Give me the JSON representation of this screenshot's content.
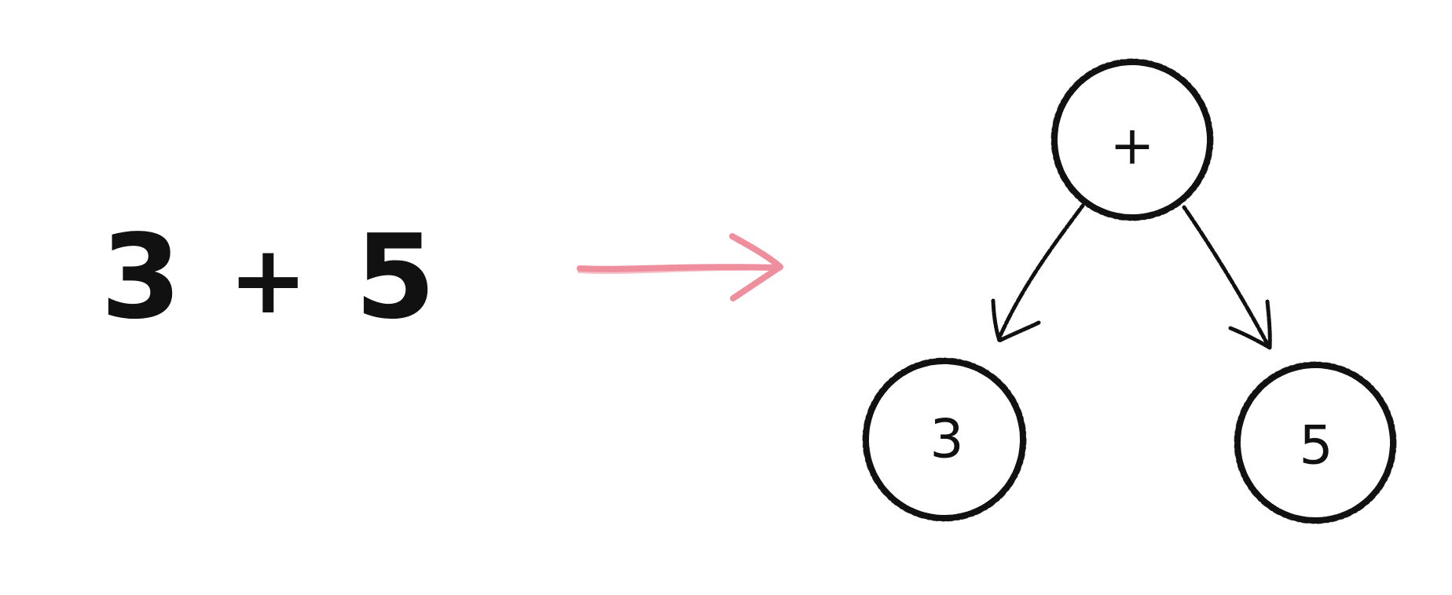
{
  "expression": {
    "left_operand": "3",
    "operator": "+",
    "right_operand": "5"
  },
  "tree": {
    "root": "+",
    "left": "3",
    "right": "5"
  },
  "colors": {
    "ink": "#111111",
    "arrow": "#ef8f9e",
    "background": "#ffffff"
  }
}
